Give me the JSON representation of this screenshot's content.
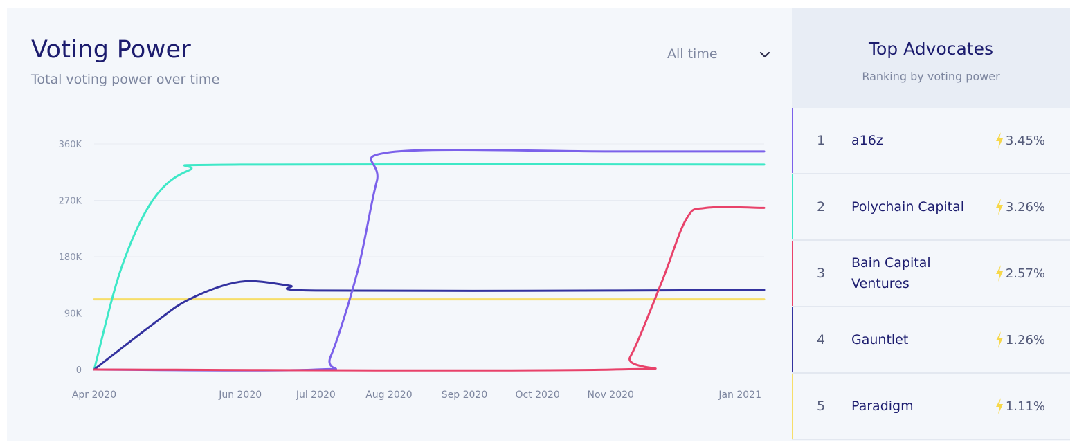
{
  "header": {
    "title": "Voting Power",
    "subtitle": "Total voting power over time"
  },
  "range_select": {
    "value": "All time",
    "icon": "chevron-down-icon"
  },
  "chart_data": {
    "type": "line",
    "title": "Voting Power",
    "subtitle": "Total voting power over time",
    "xlabel": "",
    "ylabel": "",
    "x_domain": [
      "2020-04-01",
      "2021-01-01"
    ],
    "x_ticks": [
      {
        "date": "2020-04-01",
        "label": "Apr 2020"
      },
      {
        "date": "2020-05-31",
        "label": "Jun 2020"
      },
      {
        "date": "2020-07-01",
        "label": "Jul 2020"
      },
      {
        "date": "2020-07-31",
        "label": "Aug 2020"
      },
      {
        "date": "2020-08-31",
        "label": "Sep 2020"
      },
      {
        "date": "2020-09-30",
        "label": "Oct 2020"
      },
      {
        "date": "2020-10-30",
        "label": "Nov 2020"
      },
      {
        "date": "2020-12-31",
        "label": "Jan 2021"
      }
    ],
    "ylim": [
      0,
      360000
    ],
    "y_ticks": [
      {
        "value": 0,
        "label": "0"
      },
      {
        "value": 90000,
        "label": "90K"
      },
      {
        "value": 180000,
        "label": "180K"
      },
      {
        "value": 270000,
        "label": "270K"
      },
      {
        "value": 360000,
        "label": "360K"
      }
    ],
    "grid": true,
    "series": [
      {
        "name": "a16z",
        "color": "#7b61ea",
        "points": [
          [
            "2020-04-01",
            0
          ],
          [
            "2020-07-01",
            0
          ],
          [
            "2020-07-07",
            20000
          ],
          [
            "2020-07-18",
            155000
          ],
          [
            "2020-07-26",
            300000
          ],
          [
            "2020-08-01",
            347000
          ],
          [
            "2020-10-30",
            348000
          ],
          [
            "2021-01-01",
            348000
          ]
        ]
      },
      {
        "name": "Polychain Capital",
        "color": "#3ee8c7",
        "points": [
          [
            "2020-04-01",
            0
          ],
          [
            "2020-04-12",
            160000
          ],
          [
            "2020-04-25",
            270000
          ],
          [
            "2020-05-10",
            318000
          ],
          [
            "2020-05-31",
            327000
          ],
          [
            "2021-01-01",
            327000
          ]
        ]
      },
      {
        "name": "Bain Capital Ventures",
        "color": "#e8426a",
        "points": [
          [
            "2020-04-01",
            0
          ],
          [
            "2020-10-31",
            0
          ],
          [
            "2020-11-07",
            20000
          ],
          [
            "2020-11-20",
            140000
          ],
          [
            "2020-11-30",
            240000
          ],
          [
            "2020-12-08",
            258000
          ],
          [
            "2021-01-01",
            258000
          ]
        ]
      },
      {
        "name": "Gauntlet",
        "color": "#33329f",
        "points": [
          [
            "2020-04-01",
            0
          ],
          [
            "2020-04-25",
            72000
          ],
          [
            "2020-05-10",
            112000
          ],
          [
            "2020-05-31",
            140000
          ],
          [
            "2020-06-20",
            134000
          ],
          [
            "2020-07-01",
            126000
          ],
          [
            "2020-10-30",
            126000
          ],
          [
            "2021-01-01",
            127000
          ]
        ]
      },
      {
        "name": "Paradigm",
        "color": "#f6de6a",
        "points": [
          [
            "2020-04-01",
            112000
          ],
          [
            "2021-01-01",
            112000
          ]
        ]
      }
    ]
  },
  "advocates": {
    "title": "Top Advocates",
    "subtitle": "Ranking by voting power",
    "items": [
      {
        "rank": "1",
        "name": "a16z",
        "pct": "3.45%",
        "color": "#7b61ea"
      },
      {
        "rank": "2",
        "name": "Polychain Capital",
        "pct": "3.26%",
        "color": "#3ee8c7"
      },
      {
        "rank": "3",
        "name": "Bain Capital Ventures",
        "pct": "2.57%",
        "color": "#e8426a"
      },
      {
        "rank": "4",
        "name": "Gauntlet",
        "pct": "1.26%",
        "color": "#33329f"
      },
      {
        "rank": "5",
        "name": "Paradigm",
        "pct": "1.11%",
        "color": "#f6de6a"
      }
    ],
    "pct_icon": "lightning-bolt-icon",
    "bolt_color": "#f7d84a"
  }
}
